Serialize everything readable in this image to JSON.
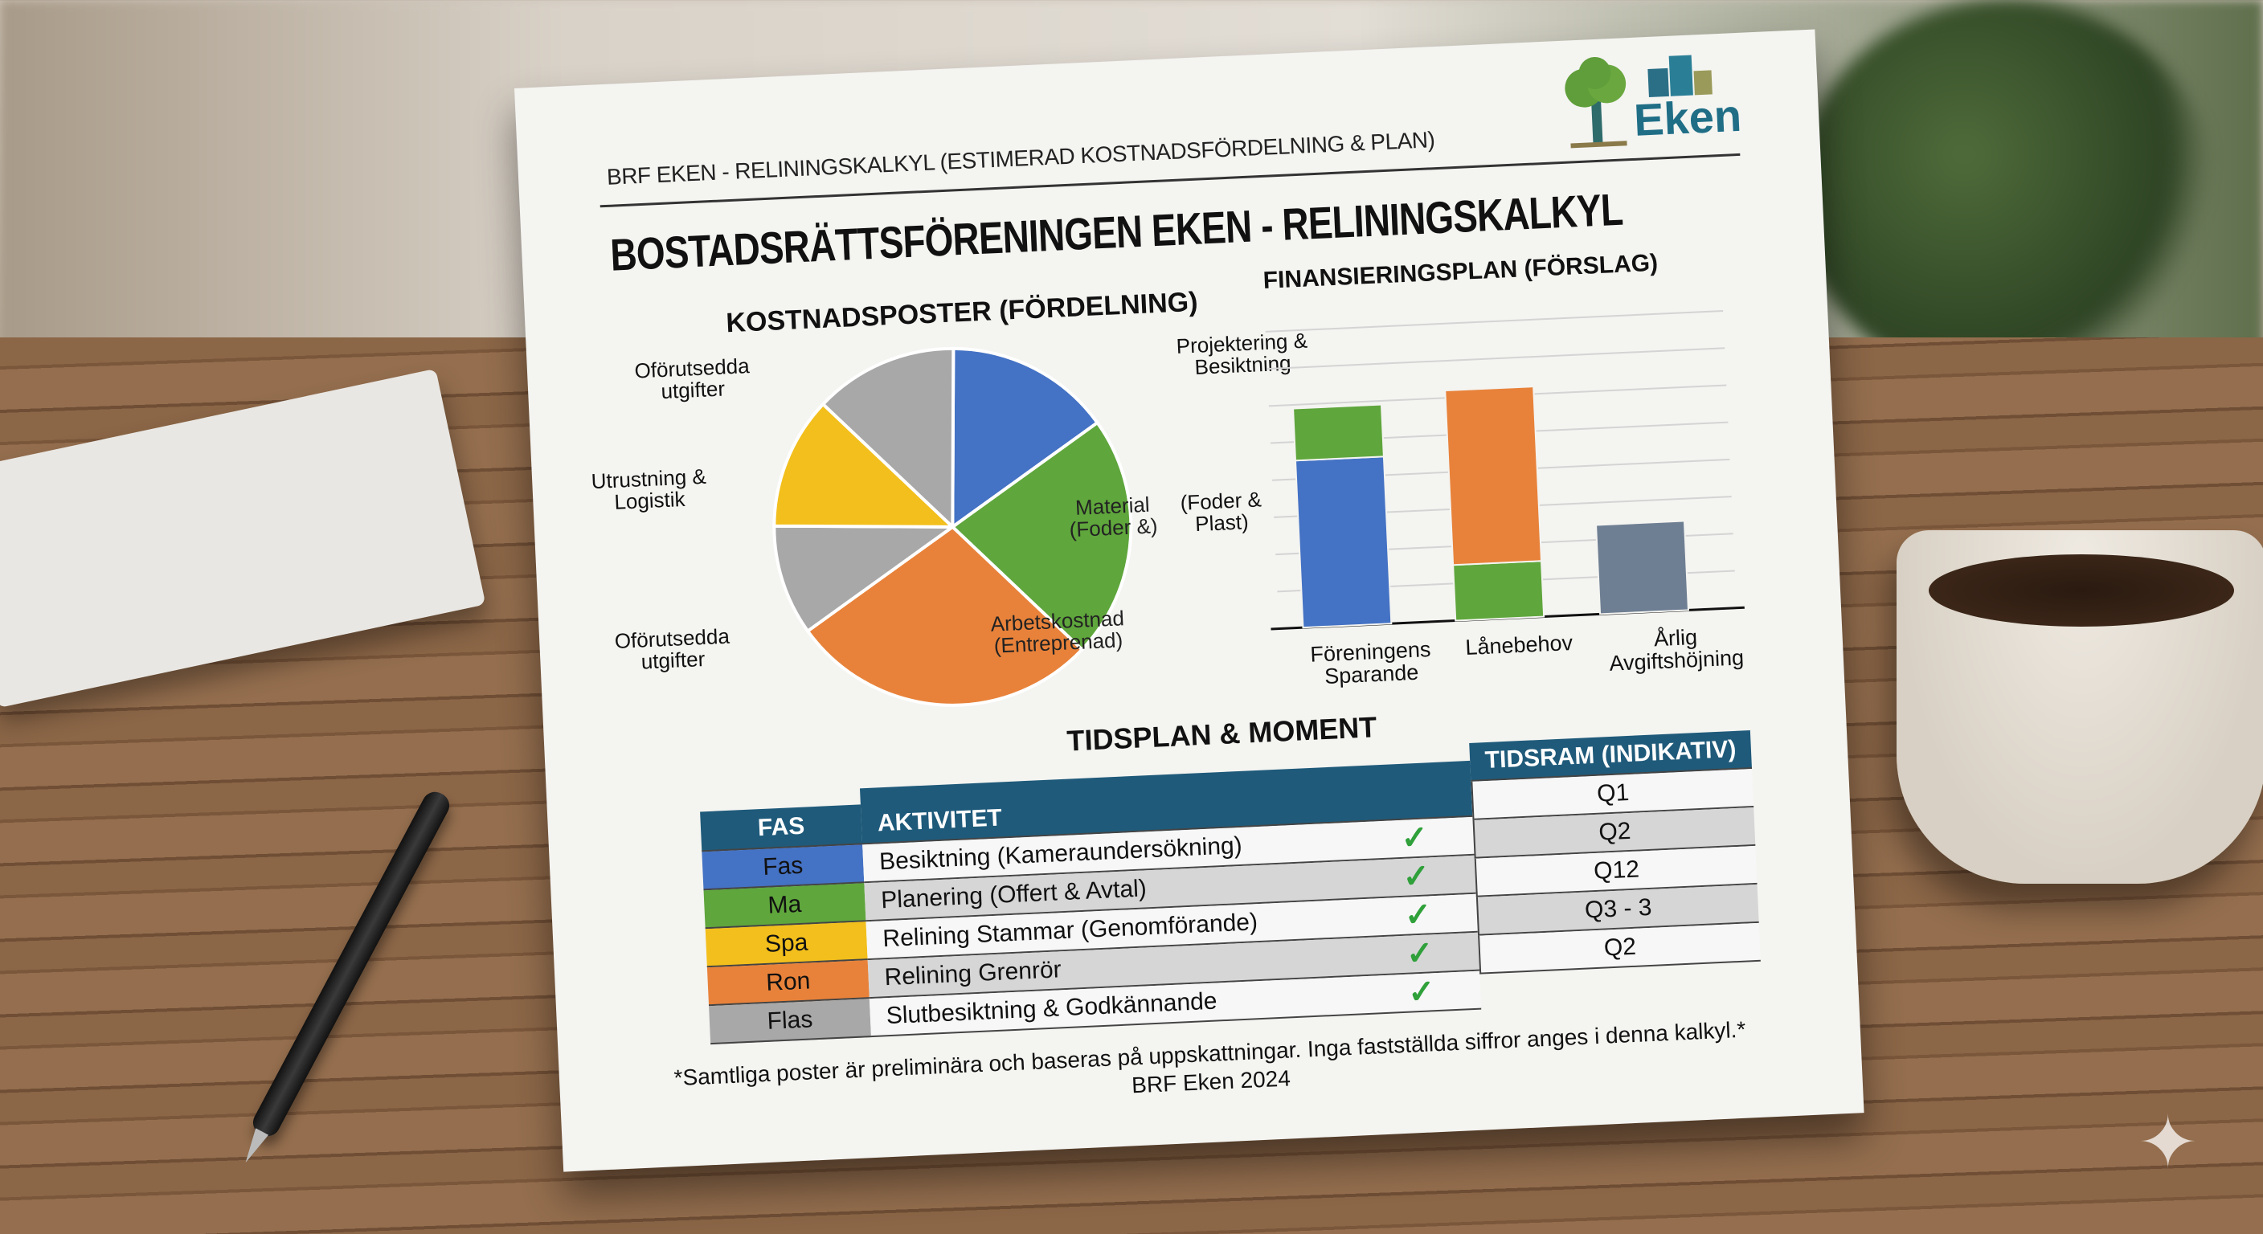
{
  "document": {
    "header": "BRF EKEN - RELININGSKALKYL (ESTIMERAD KOSTNADSFÖRDELNING & PLAN)",
    "logo_text": "Eken",
    "title": "BOSTADSRÄTTSFÖRENINGEN EKEN - RELININGSKALKYL",
    "footnote": "*Samtliga poster är preliminära och baseras på uppskattningar. Inga fastställda siffror anges i denna kalkyl.*",
    "footer": "BRF Eken 2024"
  },
  "chart_data": [
    {
      "type": "pie",
      "title": "KOSTNADSPOSTER (FÖRDELNING)",
      "slices": [
        {
          "label": "Projektering & Besiktning",
          "value": 15,
          "color": "#4472c4"
        },
        {
          "label": "Material (Foder &)",
          "outer_label": "(Foder & Plast)",
          "value": 22,
          "color": "#5fa63c"
        },
        {
          "label": "Arbetskostnad (Entreprenad)",
          "value": 28,
          "color": "#e8823a"
        },
        {
          "label": "Oförutsedda utgifter",
          "value": 10,
          "color": "#a8a8a8"
        },
        {
          "label": "Utrustning & Logistik",
          "value": 12,
          "color": "#f2bf1c"
        },
        {
          "label": "Oförutsedda utgifter",
          "value": 13,
          "color": "#a8a8a8"
        }
      ]
    },
    {
      "type": "bar",
      "stacked": true,
      "title": "FINANSIERINGSPLAN (FÖRSLAG)",
      "grid": true,
      "ylim": [
        0,
        8
      ],
      "categories": [
        "Föreningens Sparande",
        "Lånebehov",
        "Årlig Avgiftshöjning"
      ],
      "series": [
        {
          "values": [
            4.5,
            0,
            0
          ],
          "color": "#4472c4"
        },
        {
          "values": [
            1.4,
            1.5,
            0
          ],
          "color": "#5fa63c"
        },
        {
          "values": [
            0,
            4.7,
            0
          ],
          "color": "#e8823a"
        },
        {
          "values": [
            0,
            0,
            2.4
          ],
          "color": "#6f7f93"
        }
      ]
    }
  ],
  "table": {
    "title": "TIDSPLAN & MOMENT",
    "headers": {
      "fas": "FAS",
      "aktivitet": "AKTIVITET",
      "tidsram": "TIDSRAM (INDIKATIV)"
    },
    "rows": [
      {
        "fas": "Fas",
        "color": "#4472c4",
        "aktivitet": "Besiktning (Kameraundersökning)",
        "done": true
      },
      {
        "fas": "Ma",
        "color": "#5fa63c",
        "aktivitet": "Planering (Offert & Avtal)",
        "done": true
      },
      {
        "fas": "Spa",
        "color": "#f2bf1c",
        "aktivitet": "Relining Stammar (Genomförande)",
        "done": true
      },
      {
        "fas": "Ron",
        "color": "#e8823a",
        "aktivitet": "Relining Grenrör",
        "done": true
      },
      {
        "fas": "Flas",
        "color": "#a8a8a8",
        "aktivitet": "Slutbesiktning & Godkännande",
        "done": true
      }
    ],
    "tidsram": [
      "Q1",
      "Q2",
      "Q12",
      "Q3 - 3",
      "Q2"
    ],
    "check_icon": "✓"
  }
}
